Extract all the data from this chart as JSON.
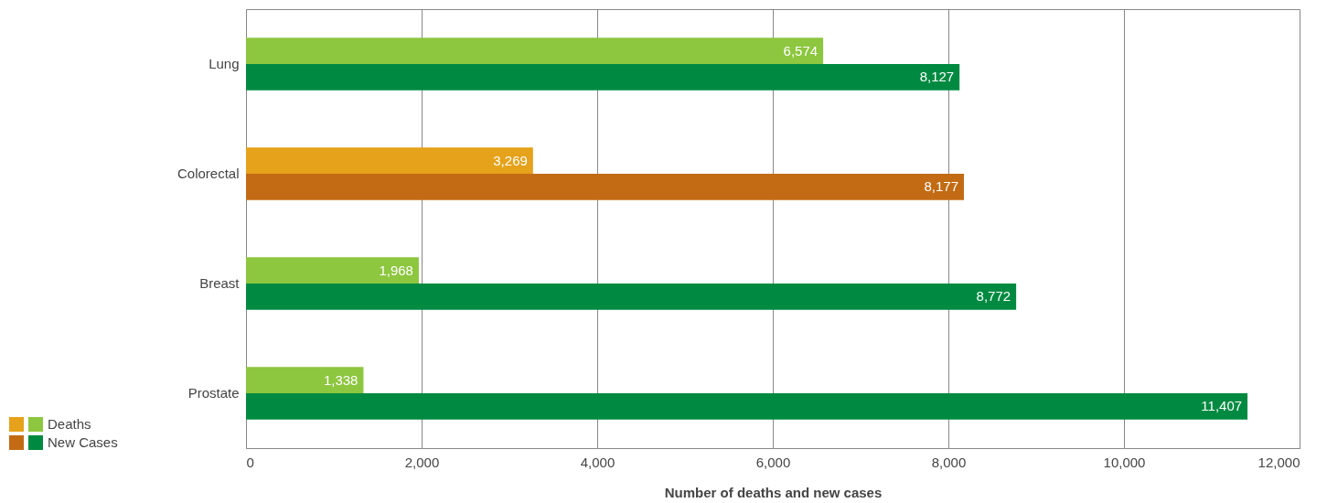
{
  "chart_data": {
    "type": "bar",
    "orientation": "horizontal",
    "xlabel": "Number of deaths and new cases",
    "categories": [
      "Lung",
      "Colorectal",
      "Breast",
      "Prostate"
    ],
    "series": [
      {
        "name": "Deaths",
        "values": [
          6574,
          3269,
          1968,
          1338
        ],
        "value_labels": [
          "6,574",
          "3,269",
          "1,968",
          "1,338"
        ],
        "colors": [
          "#8dc63f",
          "#e5a21a",
          "#8dc63f",
          "#8dc63f"
        ]
      },
      {
        "name": "New Cases",
        "values": [
          8127,
          8177,
          8772,
          11407
        ],
        "value_labels": [
          "8,127",
          "8,177",
          "8,772",
          "11,407"
        ],
        "colors": [
          "#008a41",
          "#c26b14",
          "#008a41",
          "#008a41"
        ]
      }
    ],
    "xlim": [
      0,
      12000
    ],
    "xticks": [
      0,
      {
        "value": 2000,
        "label": "2,000"
      },
      {
        "value": 4000,
        "label": "4,000"
      },
      {
        "value": 6000,
        "label": "6,000"
      },
      {
        "value": 8000,
        "label": "8,000"
      },
      {
        "value": 10000,
        "label": "10,000"
      },
      {
        "value": 12000,
        "label": "12,000"
      }
    ],
    "grid": "x",
    "legend": "bottom left"
  }
}
